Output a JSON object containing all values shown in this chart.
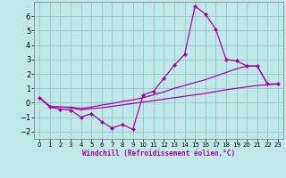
{
  "xlabel": "Windchill (Refroidissement éolien,°C)",
  "background_color": "#c0e8e8",
  "grid_color": "#98cccc",
  "line_color": "#aa00aa",
  "x": [
    0,
    1,
    2,
    3,
    4,
    5,
    6,
    7,
    8,
    9,
    10,
    11,
    12,
    13,
    14,
    15,
    16,
    17,
    18,
    19,
    20,
    21,
    22,
    23
  ],
  "y_main": [
    0.35,
    -0.3,
    -0.45,
    -0.5,
    -1.0,
    -0.75,
    -1.3,
    -1.75,
    -1.5,
    -1.85,
    0.55,
    0.8,
    1.7,
    2.6,
    3.35,
    6.7,
    6.15,
    5.1,
    3.0,
    2.9,
    2.55,
    2.55,
    1.3,
    1.3
  ],
  "y_upper": [
    0.35,
    -0.25,
    -0.3,
    -0.3,
    -0.4,
    -0.3,
    -0.15,
    -0.05,
    0.1,
    0.2,
    0.35,
    0.55,
    0.75,
    1.0,
    1.2,
    1.4,
    1.6,
    1.85,
    2.1,
    2.35,
    2.55,
    2.55,
    1.3,
    1.3
  ],
  "y_lower": [
    0.35,
    -0.25,
    -0.3,
    -0.35,
    -0.5,
    -0.4,
    -0.35,
    -0.25,
    -0.15,
    -0.05,
    0.05,
    0.15,
    0.25,
    0.35,
    0.45,
    0.55,
    0.65,
    0.78,
    0.9,
    1.0,
    1.1,
    1.2,
    1.25,
    1.3
  ],
  "ylim": [
    -2.5,
    7.0
  ],
  "yticks": [
    -2,
    -1,
    0,
    1,
    2,
    3,
    4,
    5,
    6
  ],
  "xlim": [
    -0.5,
    23.5
  ],
  "xticks": [
    0,
    1,
    2,
    3,
    4,
    5,
    6,
    7,
    8,
    9,
    10,
    11,
    12,
    13,
    14,
    15,
    16,
    17,
    18,
    19,
    20,
    21,
    22,
    23
  ],
  "tick_fontsize_x": 5.0,
  "tick_fontsize_y": 6.0,
  "xlabel_fontsize": 5.5,
  "linewidth": 0.9,
  "marker": "D",
  "markersize": 2.2
}
